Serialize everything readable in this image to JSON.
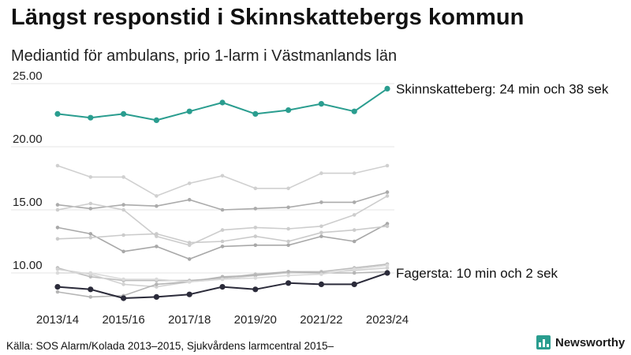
{
  "title": "Längst responstid i Skinnskattebergs kommun",
  "subtitle": "Mediantid för ambulans, prio 1-larm i Västmanlands län",
  "source": "Källa: SOS Alarm/Kolada 2013–2015, Sjukvårdens larmcentral 2015–",
  "brand": "Newsworthy",
  "colors": {
    "highlight": "#2a9d8f",
    "low": "#2b2b3a",
    "grid": "#e6e6e6"
  },
  "chart_data": {
    "type": "line",
    "title": "Längst responstid i Skinnskattebergs kommun",
    "subtitle": "Mediantid för ambulans, prio 1-larm i Västmanlands län",
    "x": [
      "2013/14",
      "2014/15",
      "2015/16",
      "2016/17",
      "2017/18",
      "2018/19",
      "2019/20",
      "2020/21",
      "2021/22",
      "2022/23",
      "2023/24"
    ],
    "x_ticks": [
      "2013/14",
      "2015/16",
      "2017/18",
      "2019/20",
      "2021/22",
      "2023/24"
    ],
    "y_ticks": [
      "25.00",
      "20.00",
      "15.00",
      "10.00"
    ],
    "ylim": [
      7.5,
      26
    ],
    "grid": true,
    "series": [
      {
        "role": "bg",
        "color": "#d0d0d0",
        "values": [
          18.5,
          17.6,
          17.6,
          16.1,
          17.1,
          17.7,
          16.7,
          16.7,
          17.9,
          17.9,
          18.5
        ]
      },
      {
        "role": "bg",
        "color": "#ababab",
        "values": [
          15.4,
          15.1,
          15.4,
          15.3,
          15.8,
          15.0,
          15.1,
          15.2,
          15.6,
          15.6,
          16.4
        ]
      },
      {
        "role": "bg",
        "color": "#cdcdcd",
        "values": [
          15.0,
          15.5,
          15.0,
          12.9,
          12.2,
          13.4,
          13.6,
          13.5,
          13.7,
          14.6,
          16.1
        ]
      },
      {
        "role": "bg",
        "color": "#a8a8a8",
        "values": [
          13.6,
          13.1,
          11.7,
          12.1,
          11.1,
          12.1,
          12.2,
          12.2,
          12.9,
          12.5,
          13.9
        ]
      },
      {
        "role": "bg",
        "color": "#cbcbcb",
        "values": [
          12.7,
          12.8,
          13.0,
          13.1,
          12.4,
          12.5,
          12.9,
          12.5,
          13.2,
          13.4,
          13.7
        ]
      },
      {
        "role": "bg",
        "color": "#bdbdbd",
        "values": [
          10.4,
          9.7,
          9.4,
          9.4,
          9.4,
          9.6,
          9.9,
          10.1,
          10.1,
          10.4,
          10.7
        ]
      },
      {
        "role": "bg",
        "color": "#d2d2d2",
        "values": [
          10.3,
          9.9,
          9.1,
          8.9,
          9.3,
          9.5,
          9.8,
          10.0,
          10.0,
          10.2,
          10.4
        ]
      },
      {
        "role": "bg",
        "color": "#b5b5b5",
        "values": [
          8.5,
          8.1,
          8.2,
          9.1,
          9.3,
          9.7,
          9.8,
          10.1,
          10.0,
          10.0,
          10.1
        ]
      },
      {
        "role": "bg",
        "color": "#dadada",
        "values": [
          10.0,
          10.0,
          9.5,
          9.5,
          9.3,
          9.5,
          9.6,
          9.8,
          9.9,
          10.3,
          10.6
        ]
      },
      {
        "role": "low",
        "name": "Fagersta",
        "color": "#2b2b3a",
        "values": [
          8.9,
          8.7,
          8.0,
          8.1,
          8.3,
          8.9,
          8.7,
          9.2,
          9.1,
          9.1,
          10.0
        ]
      },
      {
        "role": "high",
        "name": "Skinnskatteberg",
        "color": "#2a9d8f",
        "values": [
          22.6,
          22.3,
          22.6,
          22.1,
          22.8,
          23.5,
          22.6,
          22.9,
          23.4,
          22.8,
          24.6
        ]
      }
    ],
    "annotations": {
      "high": "Skinnskatteberg: 24 min och 38 sek",
      "low": "Fagersta: 10 min och 2 sek"
    }
  }
}
